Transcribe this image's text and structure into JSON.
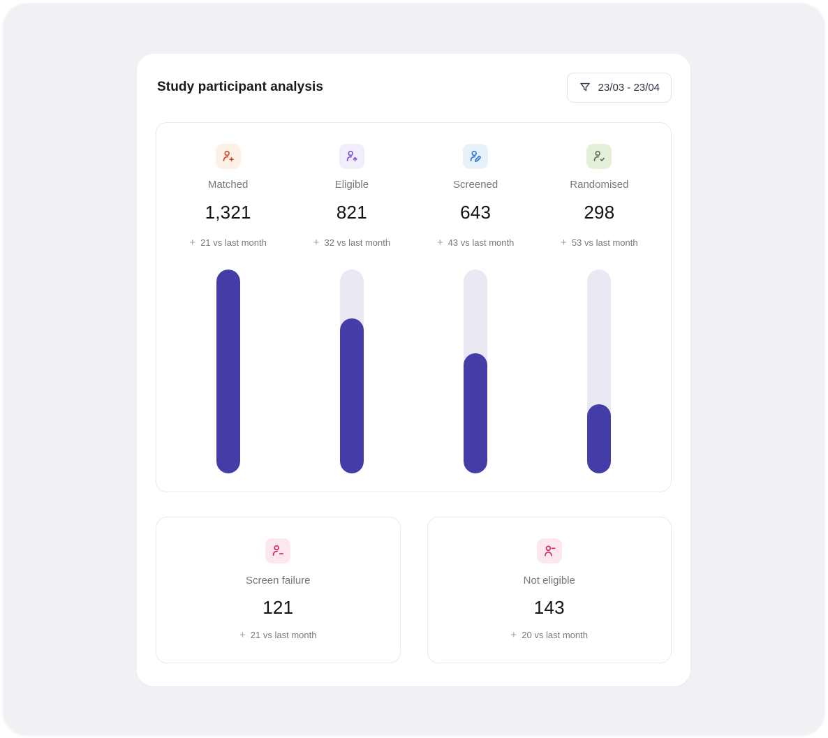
{
  "header": {
    "title": "Study participant analysis",
    "date_filter": {
      "label": "23/03 - 23/04",
      "icon": "funnel-icon"
    }
  },
  "funnel_chart": {
    "bar_fill_color": "#443da7",
    "bar_track_color": "#e9e9f3",
    "stages": [
      {
        "id": "matched",
        "label": "Matched",
        "value": "1,321",
        "delta_prefix": "+",
        "delta_text": "21 vs last month",
        "icon": "user-plus-icon",
        "icon_color": "#d4482a",
        "icon_bg": "#fdf0e7",
        "fill_percent": 100
      },
      {
        "id": "eligible",
        "label": "Eligible",
        "value": "821",
        "delta_prefix": "+",
        "delta_text": "32 vs last month",
        "icon": "user-arrow-up-icon",
        "icon_color": "#7c4ddc",
        "icon_bg": "#f2edfb",
        "fill_percent": 76
      },
      {
        "id": "screened",
        "label": "Screened",
        "value": "643",
        "delta_prefix": "+",
        "delta_text": "43 vs last month",
        "icon": "user-pen-icon",
        "icon_color": "#2f6fe4",
        "icon_bg": "#e7f1fa",
        "fill_percent": 59
      },
      {
        "id": "randomised",
        "label": "Randomised",
        "value": "298",
        "delta_prefix": "+",
        "delta_text": "53 vs last month",
        "icon": "user-check-icon",
        "icon_color": "#55754a",
        "icon_bg": "#e4f0da",
        "fill_percent": 34
      }
    ]
  },
  "summary_cards": [
    {
      "id": "screen-failure",
      "label": "Screen failure",
      "value": "121",
      "delta_prefix": "+",
      "delta_text": "21 vs last month",
      "icon": "user-minus-icon",
      "icon_color": "#d6275f",
      "icon_bg": "#fbe7ec"
    },
    {
      "id": "not-eligible",
      "label": "Not eligible",
      "value": "143",
      "delta_prefix": "+",
      "delta_text": "20 vs last month",
      "icon": "user-minus-top-icon",
      "icon_color": "#d6275f",
      "icon_bg": "#fbe7ec"
    }
  ],
  "chart_data": {
    "type": "bar",
    "title": "Study participant analysis",
    "categories": [
      "Matched",
      "Eligible",
      "Screened",
      "Randomised"
    ],
    "values": [
      1321,
      821,
      643,
      298
    ],
    "deltas_vs_last_month": [
      21,
      32,
      43,
      53
    ],
    "bar_fill_percents": [
      100,
      76,
      59,
      34
    ],
    "extra_metrics": [
      {
        "label": "Screen failure",
        "value": 121,
        "delta_vs_last_month": 21
      },
      {
        "label": "Not eligible",
        "value": 143,
        "delta_vs_last_month": 20
      }
    ],
    "legend": "none",
    "grid": "off",
    "orientation": "vertical"
  }
}
